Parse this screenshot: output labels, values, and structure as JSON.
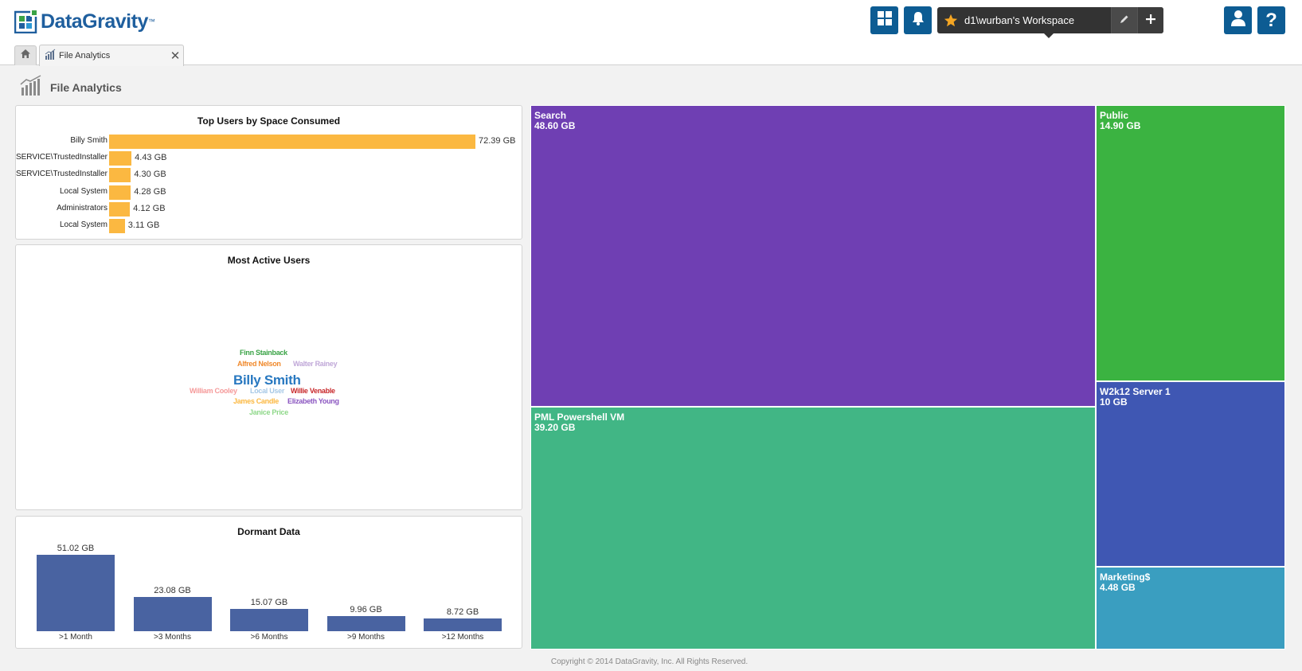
{
  "brand": {
    "name": "DataGravity",
    "tm": "™"
  },
  "header": {
    "workspace_name": "d1\\wurban's Workspace",
    "icons": [
      "dashboard-grid-icon",
      "bell-icon",
      "star-icon",
      "pencil-icon",
      "plus-icon",
      "user-icon",
      "help-icon"
    ]
  },
  "tabs": {
    "active_label": "File Analytics"
  },
  "page": {
    "title": "File Analytics"
  },
  "top_users": {
    "title": "Top Users by Space Consumed",
    "rows": [
      {
        "label": "Billy Smith",
        "value": "72.39 GB",
        "num": 72.39
      },
      {
        "label": "NT SERVICE\\TrustedInstaller",
        "value": "4.43 GB",
        "num": 4.43
      },
      {
        "label": "NT SERVICE\\TrustedInstaller",
        "value": "4.30 GB",
        "num": 4.3
      },
      {
        "label": "Local System",
        "value": "4.28 GB",
        "num": 4.28
      },
      {
        "label": "Administrators",
        "value": "4.12 GB",
        "num": 4.12
      },
      {
        "label": "Local System",
        "value": "3.11 GB",
        "num": 3.11
      }
    ],
    "color": "#fbb841"
  },
  "active_users": {
    "title": "Most Active Users",
    "words": [
      {
        "text": "Finn Stainback",
        "color": "#3aa346"
      },
      {
        "text": "Alfred Nelson",
        "color": "#f0892b"
      },
      {
        "text": "Walter Rainey",
        "color": "#c0a8d8"
      },
      {
        "text": "Billy Smith",
        "color": "#2878c0"
      },
      {
        "text": "William Cooley",
        "color": "#f59a9a"
      },
      {
        "text": "Local User",
        "color": "#a6c8e6"
      },
      {
        "text": "Willie Venable",
        "color": "#c8282a"
      },
      {
        "text": "James Candle",
        "color": "#fbb841"
      },
      {
        "text": "Elizabeth Young",
        "color": "#8a55c0"
      },
      {
        "text": "Janice Price",
        "color": "#8fd88a"
      }
    ]
  },
  "dormant": {
    "title": "Dormant Data",
    "bars": [
      {
        "category": ">1 Month",
        "value": "51.02 GB",
        "num": 51.02
      },
      {
        "category": ">3 Months",
        "value": "23.08 GB",
        "num": 23.08
      },
      {
        "category": ">6 Months",
        "value": "15.07 GB",
        "num": 15.07
      },
      {
        "category": ">9 Months",
        "value": "9.96 GB",
        "num": 9.96
      },
      {
        "category": ">12 Months",
        "value": "8.72 GB",
        "num": 8.72
      }
    ],
    "color": "#4963a1"
  },
  "treemap": {
    "cells": [
      {
        "name": "Search",
        "size": "48.60 GB",
        "color": "#6f3fb3"
      },
      {
        "name": "PML Powershell VM",
        "size": "39.20 GB",
        "color": "#41b685"
      },
      {
        "name": "Public",
        "size": "14.90 GB",
        "color": "#3bb341"
      },
      {
        "name": "W2k12 Server 1",
        "size": "10 GB",
        "color": "#3f57b3"
      },
      {
        "name": "Marketing$",
        "size": "4.48 GB",
        "color": "#3a9ec0"
      }
    ]
  },
  "footer": {
    "text": "Copyright © 2014 DataGravity, Inc. All Rights Reserved."
  }
}
